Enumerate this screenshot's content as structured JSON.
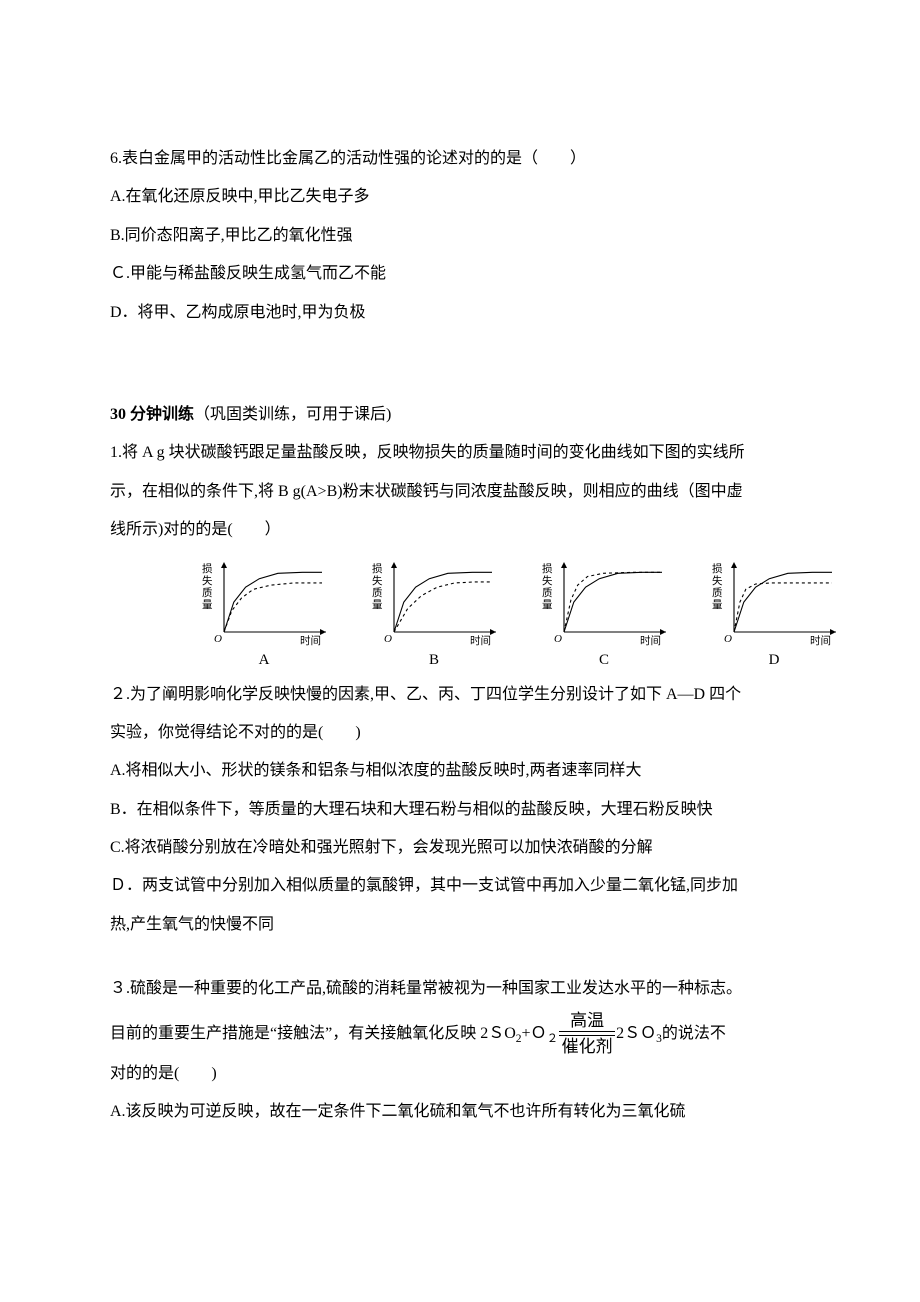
{
  "colors": {
    "text": "#000000",
    "background": "#ffffff",
    "stroke": "#000000"
  },
  "typography": {
    "body_font_family_hint": "SimSun / 宋体",
    "body_fontsize_pt": 12,
    "chart_label_fontsize_pt": 11,
    "line_height": 2.4
  },
  "q6": {
    "stem": "6.表白金属甲的活动性比金属乙的活动性强的论述对的的是（　　）",
    "A": "A.在氧化还原反映中,甲比乙失电子多",
    "B": "B.同价态阳离子,甲比乙的氧化性强",
    "C": "Ｃ.甲能与稀盐酸反映生成氢气而乙不能",
    "D": "D．将甲、乙构成原电池时,甲为负极"
  },
  "section_30min": {
    "heading_bold": "30 分钟训练",
    "heading_rest": "（巩固类训练，可用于课后)"
  },
  "q30_1": {
    "line1": "1.将 A g 块状碳酸钙跟足量盐酸反映，反映物损失的质量随时间的变化曲线如下图的实线所",
    "line2": "示，在相似的条件下,将 B g(A>B)粉末状碳酸钙与同浓度盐酸反映，则相应的曲线（图中虚",
    "line3": "线所示)对的的是(　　）",
    "chart_meta": {
      "type": "line",
      "panels": [
        "A",
        "B",
        "C",
        "D"
      ],
      "x_label": "时间",
      "y_label_vertical": "损失质量",
      "axis_color": "#000000",
      "solid_line_color": "#000000",
      "dashed_line_color": "#000000",
      "dashed_pattern": "3 3",
      "line_width": 1.1,
      "arrow_size": 4,
      "xlim": [
        0,
        100
      ],
      "ylim": [
        0,
        60
      ],
      "A": {
        "solid": [
          [
            0,
            0
          ],
          [
            10,
            28
          ],
          [
            22,
            42
          ],
          [
            36,
            50
          ],
          [
            55,
            55
          ],
          [
            80,
            56
          ],
          [
            100,
            56
          ]
        ],
        "dashed": [
          [
            0,
            0
          ],
          [
            8,
            20
          ],
          [
            18,
            32
          ],
          [
            30,
            40
          ],
          [
            48,
            44
          ],
          [
            72,
            46
          ],
          [
            100,
            46
          ]
        ]
      },
      "B": {
        "solid": [
          [
            0,
            0
          ],
          [
            10,
            28
          ],
          [
            22,
            42
          ],
          [
            36,
            50
          ],
          [
            55,
            55
          ],
          [
            80,
            56
          ],
          [
            100,
            56
          ]
        ],
        "dashed": [
          [
            0,
            0
          ],
          [
            14,
            22
          ],
          [
            28,
            34
          ],
          [
            44,
            42
          ],
          [
            62,
            46
          ],
          [
            84,
            47
          ],
          [
            100,
            47
          ]
        ]
      },
      "C": {
        "solid": [
          [
            0,
            0
          ],
          [
            10,
            28
          ],
          [
            22,
            42
          ],
          [
            36,
            50
          ],
          [
            55,
            55
          ],
          [
            80,
            56
          ],
          [
            100,
            56
          ]
        ],
        "dashed": [
          [
            0,
            0
          ],
          [
            7,
            30
          ],
          [
            14,
            44
          ],
          [
            24,
            52
          ],
          [
            40,
            55
          ],
          [
            70,
            56
          ],
          [
            100,
            56
          ]
        ]
      },
      "D": {
        "solid": [
          [
            0,
            0
          ],
          [
            10,
            28
          ],
          [
            22,
            42
          ],
          [
            36,
            50
          ],
          [
            55,
            55
          ],
          [
            80,
            56
          ],
          [
            100,
            56
          ]
        ],
        "dashed": [
          [
            0,
            0
          ],
          [
            6,
            28
          ],
          [
            12,
            40
          ],
          [
            22,
            45
          ],
          [
            38,
            46
          ],
          [
            70,
            46
          ],
          [
            100,
            46
          ]
        ]
      }
    }
  },
  "q30_2": {
    "line1": "２.为了阐明影响化学反映快慢的因素,甲、乙、丙、丁四位学生分别设计了如下 A—D 四个",
    "line2": "实验，你觉得结论不对的的是(　　)",
    "A": "A.将相似大小、形状的镁条和铝条与相似浓度的盐酸反映时,两者速率同样大",
    "B": "B．在相似条件下，等质量的大理石块和大理石粉与相似的盐酸反映，大理石粉反映快",
    "C": "C.将浓硝酸分别放在冷暗处和强光照射下，会发现光照可以加快浓硝酸的分解",
    "D1": "Ｄ．两支试管中分别加入相似质量的氯酸钾，其中一支试管中再加入少量二氧化锰,同步加",
    "D2": "热,产生氧气的快慢不同"
  },
  "q30_3": {
    "line1": "３.硫酸是一种重要的化工产品,硫酸的消耗量常被视为一种国家工业发达水平的一种标志。",
    "line2_a": "目前的重要生产措施是“接触法”，有关接触氧化反映 2ＳO",
    "sub1": "2",
    "plus": "+Ｏ",
    "sub2": "２",
    "rxn_top": "高温",
    "rxn_bot": "催化剂",
    "line2_b": "2ＳＯ",
    "sub3": "3",
    "line2_c": " 的说法不",
    "line3": "对的的是(　　)",
    "A": "A.该反映为可逆反映，故在一定条件下二氧化硫和氧气不也许所有转化为三氧化硫"
  }
}
